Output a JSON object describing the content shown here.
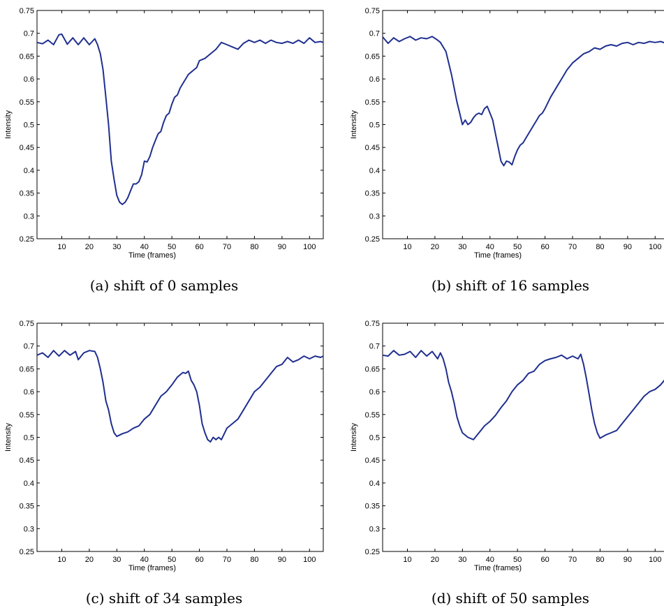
{
  "chart_data": [
    {
      "type": "line",
      "caption": "(a) shift of 0 samples",
      "xlabel": "Time (frames)",
      "ylabel": "Intensity",
      "xlim": [
        1,
        105
      ],
      "ylim": [
        0.25,
        0.75
      ],
      "xticks": [
        10,
        20,
        30,
        40,
        50,
        60,
        70,
        80,
        90,
        100
      ],
      "yticks": [
        0.25,
        0.3,
        0.35,
        0.4,
        0.45,
        0.5,
        0.55,
        0.6,
        0.65,
        0.7,
        0.75
      ],
      "grid": false,
      "series": [
        {
          "x": [
            1,
            3,
            5,
            7,
            9,
            10,
            12,
            14,
            16,
            18,
            20,
            22,
            23,
            24,
            25,
            26,
            27,
            28,
            29,
            30,
            31,
            32,
            33,
            34,
            35,
            36,
            37,
            38,
            39,
            40,
            41,
            42,
            43,
            44,
            45,
            46,
            47,
            48,
            49,
            50,
            51,
            52,
            53,
            54,
            55,
            56,
            57,
            58,
            59,
            60,
            62,
            64,
            66,
            68,
            70,
            72,
            74,
            76,
            78,
            80,
            82,
            84,
            86,
            88,
            90,
            92,
            94,
            96,
            98,
            100,
            102,
            104,
            105
          ],
          "values": [
            0.68,
            0.677,
            0.685,
            0.675,
            0.697,
            0.698,
            0.676,
            0.69,
            0.675,
            0.69,
            0.675,
            0.688,
            0.675,
            0.655,
            0.62,
            0.56,
            0.5,
            0.42,
            0.38,
            0.345,
            0.33,
            0.325,
            0.33,
            0.34,
            0.355,
            0.37,
            0.37,
            0.375,
            0.39,
            0.42,
            0.418,
            0.43,
            0.45,
            0.465,
            0.48,
            0.485,
            0.505,
            0.52,
            0.525,
            0.545,
            0.56,
            0.565,
            0.58,
            0.59,
            0.6,
            0.61,
            0.615,
            0.62,
            0.625,
            0.64,
            0.645,
            0.655,
            0.665,
            0.68,
            0.675,
            0.67,
            0.665,
            0.678,
            0.685,
            0.68,
            0.685,
            0.678,
            0.685,
            0.68,
            0.678,
            0.682,
            0.678,
            0.685,
            0.678,
            0.69,
            0.68,
            0.682,
            0.68
          ]
        }
      ]
    },
    {
      "type": "line",
      "caption": "(b) shift of 16 samples",
      "xlabel": "Time (frames)",
      "ylabel": "Intensity",
      "xlim": [
        1,
        105
      ],
      "ylim": [
        0.25,
        0.75
      ],
      "xticks": [
        10,
        20,
        30,
        40,
        50,
        60,
        70,
        80,
        90,
        100
      ],
      "yticks": [
        0.25,
        0.3,
        0.35,
        0.4,
        0.45,
        0.5,
        0.55,
        0.6,
        0.65,
        0.7,
        0.75
      ],
      "grid": false,
      "series": [
        {
          "x": [
            1,
            3,
            5,
            7,
            9,
            11,
            13,
            15,
            17,
            19,
            21,
            22,
            24,
            26,
            27,
            28,
            29,
            30,
            31,
            32,
            33,
            34,
            35,
            36,
            37,
            38,
            39,
            40,
            41,
            42,
            43,
            44,
            45,
            46,
            47,
            48,
            49,
            50,
            51,
            52,
            53,
            54,
            55,
            56,
            57,
            58,
            59,
            60,
            62,
            64,
            66,
            68,
            70,
            72,
            74,
            76,
            78,
            80,
            82,
            84,
            86,
            88,
            90,
            92,
            94,
            96,
            98,
            100,
            102,
            104,
            105
          ],
          "values": [
            0.692,
            0.678,
            0.69,
            0.682,
            0.688,
            0.693,
            0.685,
            0.69,
            0.688,
            0.693,
            0.685,
            0.68,
            0.66,
            0.61,
            0.58,
            0.55,
            0.525,
            0.5,
            0.51,
            0.5,
            0.505,
            0.515,
            0.522,
            0.525,
            0.522,
            0.535,
            0.54,
            0.525,
            0.51,
            0.48,
            0.45,
            0.42,
            0.41,
            0.42,
            0.418,
            0.412,
            0.43,
            0.445,
            0.455,
            0.46,
            0.47,
            0.48,
            0.49,
            0.5,
            0.51,
            0.52,
            0.525,
            0.535,
            0.56,
            0.58,
            0.6,
            0.62,
            0.635,
            0.645,
            0.655,
            0.66,
            0.668,
            0.665,
            0.672,
            0.675,
            0.672,
            0.678,
            0.68,
            0.675,
            0.68,
            0.678,
            0.682,
            0.68,
            0.682,
            0.678,
            0.68
          ]
        }
      ]
    },
    {
      "type": "line",
      "caption": "(c) shift of 34 samples",
      "xlabel": "Time (frames)",
      "ylabel": "Intensity",
      "xlim": [
        1,
        105
      ],
      "ylim": [
        0.25,
        0.75
      ],
      "xticks": [
        10,
        20,
        30,
        40,
        50,
        60,
        70,
        80,
        90,
        100
      ],
      "yticks": [
        0.25,
        0.3,
        0.35,
        0.4,
        0.45,
        0.5,
        0.55,
        0.6,
        0.65,
        0.7,
        0.75
      ],
      "grid": false,
      "series": [
        {
          "x": [
            1,
            3,
            5,
            7,
            9,
            11,
            13,
            15,
            16,
            18,
            20,
            22,
            23,
            24,
            25,
            26,
            27,
            28,
            29,
            30,
            32,
            34,
            36,
            38,
            40,
            42,
            44,
            46,
            48,
            50,
            52,
            54,
            55,
            56,
            57,
            58,
            59,
            60,
            61,
            62,
            63,
            64,
            65,
            66,
            67,
            68,
            70,
            72,
            74,
            76,
            78,
            80,
            82,
            84,
            86,
            88,
            90,
            92,
            94,
            96,
            98,
            100,
            102,
            104,
            105
          ],
          "values": [
            0.68,
            0.685,
            0.675,
            0.69,
            0.678,
            0.69,
            0.68,
            0.688,
            0.67,
            0.685,
            0.69,
            0.688,
            0.675,
            0.65,
            0.62,
            0.58,
            0.56,
            0.53,
            0.51,
            0.502,
            0.508,
            0.512,
            0.52,
            0.525,
            0.54,
            0.55,
            0.57,
            0.59,
            0.6,
            0.615,
            0.632,
            0.642,
            0.64,
            0.645,
            0.625,
            0.615,
            0.6,
            0.57,
            0.53,
            0.51,
            0.495,
            0.49,
            0.5,
            0.495,
            0.5,
            0.495,
            0.52,
            0.53,
            0.54,
            0.56,
            0.58,
            0.6,
            0.61,
            0.625,
            0.64,
            0.655,
            0.66,
            0.675,
            0.665,
            0.67,
            0.678,
            0.672,
            0.678,
            0.675,
            0.678
          ]
        }
      ]
    },
    {
      "type": "line",
      "caption": "(d) shift of 50 samples",
      "xlabel": "Time (frames)",
      "ylabel": "Intensity",
      "xlim": [
        1,
        105
      ],
      "ylim": [
        0.25,
        0.75
      ],
      "xticks": [
        10,
        20,
        30,
        40,
        50,
        60,
        70,
        80,
        90,
        100
      ],
      "yticks": [
        0.25,
        0.3,
        0.35,
        0.4,
        0.45,
        0.5,
        0.55,
        0.6,
        0.65,
        0.7,
        0.75
      ],
      "grid": false,
      "series": [
        {
          "x": [
            1,
            3,
            5,
            7,
            9,
            11,
            13,
            15,
            17,
            19,
            21,
            22,
            23,
            24,
            25,
            26,
            27,
            28,
            29,
            30,
            32,
            34,
            36,
            38,
            40,
            42,
            44,
            46,
            48,
            50,
            52,
            54,
            56,
            58,
            60,
            62,
            64,
            66,
            68,
            70,
            72,
            73,
            74,
            75,
            76,
            77,
            78,
            79,
            80,
            82,
            84,
            86,
            88,
            90,
            92,
            94,
            96,
            98,
            100,
            102,
            104,
            105
          ],
          "values": [
            0.68,
            0.678,
            0.69,
            0.68,
            0.682,
            0.688,
            0.675,
            0.69,
            0.678,
            0.688,
            0.672,
            0.685,
            0.672,
            0.65,
            0.62,
            0.6,
            0.575,
            0.545,
            0.525,
            0.51,
            0.5,
            0.495,
            0.51,
            0.525,
            0.535,
            0.548,
            0.565,
            0.58,
            0.6,
            0.615,
            0.625,
            0.64,
            0.645,
            0.66,
            0.668,
            0.672,
            0.675,
            0.68,
            0.672,
            0.678,
            0.672,
            0.682,
            0.66,
            0.63,
            0.595,
            0.56,
            0.53,
            0.51,
            0.498,
            0.505,
            0.51,
            0.515,
            0.53,
            0.545,
            0.56,
            0.575,
            0.59,
            0.6,
            0.605,
            0.615,
            0.63,
            0.64
          ]
        }
      ]
    }
  ]
}
